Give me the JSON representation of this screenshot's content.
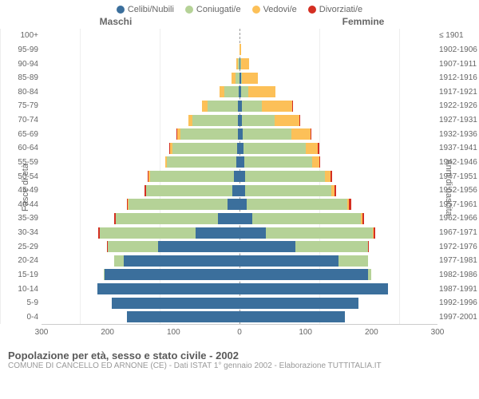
{
  "legend": {
    "items": [
      {
        "label": "Celibi/Nubili",
        "color": "#3b6f9c"
      },
      {
        "label": "Coniugati/e",
        "color": "#b5d297"
      },
      {
        "label": "Vedovi/e",
        "color": "#fcc058"
      },
      {
        "label": "Divorziati/e",
        "color": "#d42f22"
      }
    ]
  },
  "gender": {
    "male": "Maschi",
    "female": "Femmine"
  },
  "axis": {
    "left_label": "Fasce di età",
    "right_label": "Anni di nascita",
    "x_ticks": [
      300,
      200,
      100,
      0,
      100,
      200,
      300
    ],
    "x_max": 300
  },
  "colors": {
    "single": "#3b6f9c",
    "married": "#b5d297",
    "widowed": "#fcc058",
    "divorced": "#d42f22",
    "grid": "#eeeeee",
    "center": "#999999"
  },
  "rows": [
    {
      "age": "100+",
      "birth": "≤ 1901",
      "m": {
        "s": 0,
        "c": 0,
        "w": 0,
        "d": 0
      },
      "f": {
        "s": 0,
        "c": 0,
        "w": 0,
        "d": 0
      }
    },
    {
      "age": "95-99",
      "birth": "1902-1906",
      "m": {
        "s": 0,
        "c": 0,
        "w": 0,
        "d": 0
      },
      "f": {
        "s": 0,
        "c": 0,
        "w": 2,
        "d": 0
      }
    },
    {
      "age": "90-94",
      "birth": "1907-1911",
      "m": {
        "s": 0,
        "c": 2,
        "w": 3,
        "d": 0
      },
      "f": {
        "s": 1,
        "c": 2,
        "w": 11,
        "d": 0
      }
    },
    {
      "age": "85-89",
      "birth": "1912-1916",
      "m": {
        "s": 0,
        "c": 6,
        "w": 6,
        "d": 0
      },
      "f": {
        "s": 2,
        "c": 2,
        "w": 24,
        "d": 0
      }
    },
    {
      "age": "80-84",
      "birth": "1917-1921",
      "m": {
        "s": 1,
        "c": 22,
        "w": 7,
        "d": 0
      },
      "f": {
        "s": 3,
        "c": 10,
        "w": 41,
        "d": 0
      }
    },
    {
      "age": "75-79",
      "birth": "1922-1926",
      "m": {
        "s": 2,
        "c": 47,
        "w": 8,
        "d": 0
      },
      "f": {
        "s": 4,
        "c": 30,
        "w": 46,
        "d": 1
      }
    },
    {
      "age": "70-74",
      "birth": "1927-1931",
      "m": {
        "s": 3,
        "c": 69,
        "w": 6,
        "d": 0
      },
      "f": {
        "s": 4,
        "c": 49,
        "w": 38,
        "d": 1
      }
    },
    {
      "age": "65-69",
      "birth": "1932-1936",
      "m": {
        "s": 3,
        "c": 87,
        "w": 5,
        "d": 1
      },
      "f": {
        "s": 5,
        "c": 74,
        "w": 29,
        "d": 1
      }
    },
    {
      "age": "60-64",
      "birth": "1937-1941",
      "m": {
        "s": 4,
        "c": 98,
        "w": 3,
        "d": 1
      },
      "f": {
        "s": 6,
        "c": 94,
        "w": 19,
        "d": 2
      }
    },
    {
      "age": "55-59",
      "birth": "1942-1946",
      "m": {
        "s": 5,
        "c": 105,
        "w": 2,
        "d": 1
      },
      "f": {
        "s": 7,
        "c": 103,
        "w": 11,
        "d": 1
      }
    },
    {
      "age": "50-54",
      "birth": "1947-1951",
      "m": {
        "s": 8,
        "c": 128,
        "w": 2,
        "d": 1
      },
      "f": {
        "s": 8,
        "c": 122,
        "w": 8,
        "d": 2
      }
    },
    {
      "age": "45-49",
      "birth": "1952-1956",
      "m": {
        "s": 11,
        "c": 130,
        "w": 1,
        "d": 2
      },
      "f": {
        "s": 9,
        "c": 130,
        "w": 5,
        "d": 2
      }
    },
    {
      "age": "40-44",
      "birth": "1957-1961",
      "m": {
        "s": 18,
        "c": 150,
        "w": 1,
        "d": 2
      },
      "f": {
        "s": 11,
        "c": 152,
        "w": 3,
        "d": 3
      }
    },
    {
      "age": "35-39",
      "birth": "1962-1966",
      "m": {
        "s": 33,
        "c": 155,
        "w": 0,
        "d": 2
      },
      "f": {
        "s": 19,
        "c": 165,
        "w": 2,
        "d": 3
      }
    },
    {
      "age": "30-34",
      "birth": "1967-1971",
      "m": {
        "s": 67,
        "c": 145,
        "w": 0,
        "d": 2
      },
      "f": {
        "s": 40,
        "c": 162,
        "w": 1,
        "d": 3
      }
    },
    {
      "age": "25-29",
      "birth": "1972-1976",
      "m": {
        "s": 123,
        "c": 77,
        "w": 0,
        "d": 1
      },
      "f": {
        "s": 85,
        "c": 110,
        "w": 0,
        "d": 1
      }
    },
    {
      "age": "20-24",
      "birth": "1977-1981",
      "m": {
        "s": 175,
        "c": 15,
        "w": 0,
        "d": 0
      },
      "f": {
        "s": 150,
        "c": 45,
        "w": 0,
        "d": 0
      }
    },
    {
      "age": "15-19",
      "birth": "1982-1986",
      "m": {
        "s": 205,
        "c": 1,
        "w": 0,
        "d": 0
      },
      "f": {
        "s": 195,
        "c": 5,
        "w": 0,
        "d": 0
      }
    },
    {
      "age": "10-14",
      "birth": "1987-1991",
      "m": {
        "s": 215,
        "c": 0,
        "w": 0,
        "d": 0
      },
      "f": {
        "s": 225,
        "c": 0,
        "w": 0,
        "d": 0
      }
    },
    {
      "age": "5-9",
      "birth": "1992-1996",
      "m": {
        "s": 193,
        "c": 0,
        "w": 0,
        "d": 0
      },
      "f": {
        "s": 180,
        "c": 0,
        "w": 0,
        "d": 0
      }
    },
    {
      "age": "0-4",
      "birth": "1997-2001",
      "m": {
        "s": 170,
        "c": 0,
        "w": 0,
        "d": 0
      },
      "f": {
        "s": 160,
        "c": 0,
        "w": 0,
        "d": 0
      }
    }
  ],
  "footer": {
    "title": "Popolazione per età, sesso e stato civile - 2002",
    "subtitle": "COMUNE DI CANCELLO ED ARNONE (CE) - Dati ISTAT 1° gennaio 2002 - Elaborazione TUTTITALIA.IT"
  }
}
